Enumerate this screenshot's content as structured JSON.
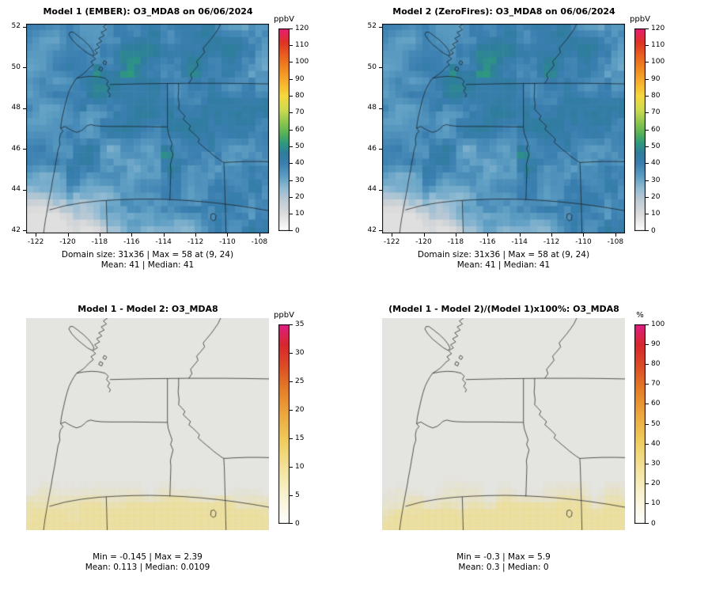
{
  "page": {
    "background": "#ffffff"
  },
  "chart_data": [
    {
      "id": "model1",
      "type": "heatmap",
      "title": "Model 1 (EMBER): O3_MDA8 on 06/06/2024",
      "field": "concentration",
      "x_ticks": [
        -122,
        -120,
        -118,
        -116,
        -114,
        -112,
        -110,
        -108
      ],
      "y_ticks": [
        42,
        44,
        46,
        48,
        50,
        52
      ],
      "x_range": [
        -122.6,
        -107.4
      ],
      "y_range": [
        41.85,
        52.15
      ],
      "grid": "off",
      "colorbar": {
        "label": "ppbV",
        "min": 0,
        "max": 120,
        "ticks": [
          0,
          10,
          20,
          30,
          40,
          50,
          60,
          70,
          80,
          90,
          100,
          110,
          120
        ],
        "position": "right"
      },
      "stats": {
        "domain_size": "31x36",
        "max": 58,
        "max_location": "(9, 24)",
        "mean": 41,
        "median": 41
      },
      "caption1": "Domain size: 31x36 | Max = 58 at (9, 24)",
      "caption2": "Mean: 41 | Median: 41"
    },
    {
      "id": "model2",
      "type": "heatmap",
      "title": "Model 2 (ZeroFires): O3_MDA8 on 06/06/2024",
      "field": "concentration",
      "x_ticks": [
        -122,
        -120,
        -118,
        -116,
        -114,
        -112,
        -110,
        -108
      ],
      "y_ticks": [
        42,
        44,
        46,
        48,
        50,
        52
      ],
      "x_range": [
        -122.6,
        -107.4
      ],
      "y_range": [
        41.85,
        52.15
      ],
      "grid": "off",
      "colorbar": {
        "label": "ppbV",
        "min": 0,
        "max": 120,
        "ticks": [
          0,
          10,
          20,
          30,
          40,
          50,
          60,
          70,
          80,
          90,
          100,
          110,
          120
        ],
        "position": "right"
      },
      "stats": {
        "domain_size": "31x36",
        "max": 58,
        "max_location": "(9, 24)",
        "mean": 41,
        "median": 41
      },
      "caption1": "Domain size: 31x36 | Max = 58 at (9, 24)",
      "caption2": "Mean: 41 | Median: 41"
    },
    {
      "id": "difference",
      "type": "heatmap",
      "title": "Model 1 - Model 2: O3_MDA8",
      "field": "difference",
      "x_ticks": [],
      "y_ticks": [],
      "x_range": [
        -122.6,
        -107.4
      ],
      "y_range": [
        41.85,
        52.15
      ],
      "grid": "off",
      "colorbar": {
        "label": "ppbV",
        "min": 0,
        "max": 35,
        "ticks": [
          0,
          5,
          10,
          15,
          20,
          25,
          30,
          35
        ],
        "position": "right"
      },
      "stats": {
        "min": -0.145,
        "max": 2.39,
        "mean": 0.113,
        "median": 0.0109
      },
      "caption1": "Min = -0.145 | Max = 2.39",
      "caption2": "Mean: 0.113 |  Median: 0.0109"
    },
    {
      "id": "percent_difference",
      "type": "heatmap",
      "title": "(Model 1 - Model 2)/(Model 1)x100%: O3_MDA8",
      "field": "difference",
      "x_ticks": [],
      "y_ticks": [],
      "x_range": [
        -122.6,
        -107.4
      ],
      "y_range": [
        41.85,
        52.15
      ],
      "grid": "off",
      "colorbar": {
        "label": "%",
        "min": 0,
        "max": 100,
        "ticks": [
          0,
          10,
          20,
          30,
          40,
          50,
          60,
          70,
          80,
          90,
          100
        ],
        "position": "right"
      },
      "stats": {
        "min": -0.3,
        "max": 5.9,
        "mean": 0.3,
        "median": 0
      },
      "caption1": "Min = -0.3 | Max = 5.9",
      "caption2": "Mean: 0.3 |  Median: 0"
    }
  ],
  "palettes": {
    "concentration_stops": [
      [
        0,
        "#FFFFFF"
      ],
      [
        10,
        "#DCDCDC"
      ],
      [
        18,
        "#BFCBD4"
      ],
      [
        25,
        "#93BCD4"
      ],
      [
        32,
        "#5F9FC4"
      ],
      [
        40,
        "#3A7FB0"
      ],
      [
        46,
        "#2F7D9E"
      ],
      [
        52,
        "#2E9B7F"
      ],
      [
        58,
        "#58B457"
      ],
      [
        64,
        "#8AC64D"
      ],
      [
        72,
        "#CFDB50"
      ],
      [
        80,
        "#F5D93E"
      ],
      [
        88,
        "#F7B32E"
      ],
      [
        96,
        "#F18B22"
      ],
      [
        104,
        "#EA611F"
      ],
      [
        112,
        "#E03326"
      ],
      [
        120,
        "#E81E77"
      ]
    ],
    "difference_stops": [
      [
        0,
        "#FFFFFF"
      ],
      [
        0.14,
        "#F9F3D2"
      ],
      [
        0.28,
        "#F4E39B"
      ],
      [
        0.42,
        "#F0CC5C"
      ],
      [
        0.55,
        "#ECA83E"
      ],
      [
        0.68,
        "#E57C28"
      ],
      [
        0.8,
        "#DC4A26"
      ],
      [
        0.9,
        "#D8272F"
      ],
      [
        1,
        "#E01F83"
      ]
    ],
    "difference_base": "#E4E4E0",
    "tint_yellow": "#EEDC82",
    "border_color": "#1A1A1A",
    "frame_color": "#000000"
  }
}
